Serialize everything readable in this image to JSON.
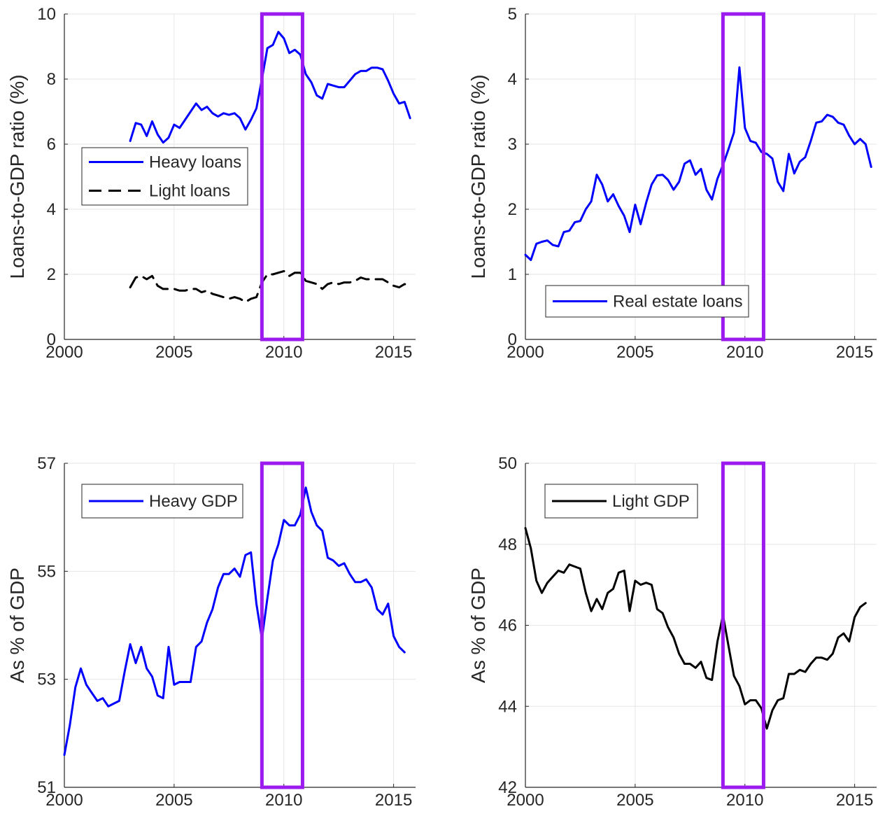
{
  "highlight_color": "#9b1bef",
  "chart_data": [
    {
      "type": "line",
      "ylabel": "Loans-to-GDP ratio (%)",
      "xlim": [
        2000,
        2016
      ],
      "ylim": [
        0,
        10
      ],
      "xticks": [
        2000,
        2005,
        2010,
        2015
      ],
      "yticks": [
        0,
        2,
        4,
        6,
        8,
        10
      ],
      "grid": true,
      "legend_position": "middle-left",
      "highlight_range": [
        2009,
        2010.85
      ],
      "series": [
        {
          "name": "Heavy loans",
          "color": "#0000ff",
          "dash": "solid",
          "x": [
            2003,
            2003.25,
            2003.5,
            2003.75,
            2004,
            2004.25,
            2004.5,
            2004.75,
            2005,
            2005.25,
            2005.5,
            2005.75,
            2006,
            2006.25,
            2006.5,
            2006.75,
            2007,
            2007.25,
            2007.5,
            2007.75,
            2008,
            2008.25,
            2008.5,
            2008.75,
            2009,
            2009.25,
            2009.5,
            2009.75,
            2010,
            2010.25,
            2010.5,
            2010.75,
            2011,
            2011.25,
            2011.5,
            2011.75,
            2012,
            2012.25,
            2012.5,
            2012.75,
            2013,
            2013.25,
            2013.5,
            2013.75,
            2014,
            2014.25,
            2014.5,
            2014.75,
            2015,
            2015.25,
            2015.5,
            2015.75
          ],
          "y": [
            6.1,
            6.65,
            6.6,
            6.25,
            6.7,
            6.3,
            6.05,
            6.2,
            6.6,
            6.5,
            6.75,
            7.0,
            7.25,
            7.05,
            7.15,
            6.95,
            6.85,
            6.95,
            6.9,
            6.95,
            6.8,
            6.45,
            6.75,
            7.1,
            8.0,
            8.95,
            9.05,
            9.45,
            9.25,
            8.8,
            8.9,
            8.75,
            8.15,
            7.9,
            7.5,
            7.4,
            7.85,
            7.8,
            7.75,
            7.75,
            7.95,
            8.15,
            8.25,
            8.25,
            8.35,
            8.35,
            8.3,
            7.95,
            7.55,
            7.25,
            7.3,
            6.8
          ]
        },
        {
          "name": "Light loans",
          "color": "#000000",
          "dash": "dashed",
          "x": [
            2003,
            2003.25,
            2003.5,
            2003.75,
            2004,
            2004.25,
            2004.5,
            2004.75,
            2005,
            2005.25,
            2005.5,
            2005.75,
            2006,
            2006.25,
            2006.5,
            2006.75,
            2007,
            2007.25,
            2007.5,
            2007.75,
            2008,
            2008.25,
            2008.5,
            2008.75,
            2009,
            2009.25,
            2009.5,
            2009.75,
            2010,
            2010.25,
            2010.5,
            2010.75,
            2011,
            2011.25,
            2011.5,
            2011.75,
            2012,
            2012.25,
            2012.5,
            2012.75,
            2013,
            2013.25,
            2013.5,
            2013.75,
            2014,
            2014.25,
            2014.5,
            2014.75,
            2015,
            2015.25,
            2015.5,
            2015.75
          ],
          "y": [
            1.6,
            1.9,
            1.95,
            1.85,
            1.95,
            1.65,
            1.55,
            1.55,
            1.55,
            1.5,
            1.5,
            1.55,
            1.55,
            1.45,
            1.5,
            1.4,
            1.35,
            1.3,
            1.25,
            1.3,
            1.25,
            1.15,
            1.25,
            1.3,
            1.75,
            2.0,
            2.0,
            2.05,
            2.1,
            1.95,
            2.05,
            2.05,
            1.8,
            1.75,
            1.7,
            1.55,
            1.7,
            1.75,
            1.7,
            1.75,
            1.75,
            1.8,
            1.9,
            1.85,
            1.85,
            1.85,
            1.85,
            1.75,
            1.65,
            1.6,
            1.7,
            1.65
          ]
        }
      ]
    },
    {
      "type": "line",
      "ylabel": "Loans-to-GDP ratio (%)",
      "xlim": [
        2000,
        2016
      ],
      "ylim": [
        0,
        5
      ],
      "xticks": [
        2000,
        2005,
        2010,
        2015
      ],
      "yticks": [
        0,
        1,
        2,
        3,
        4,
        5
      ],
      "grid": true,
      "legend_position": "bottom-center",
      "highlight_range": [
        2009,
        2010.85
      ],
      "series": [
        {
          "name": "Real estate loans",
          "color": "#0000ff",
          "dash": "solid",
          "x": [
            2000,
            2000.25,
            2000.5,
            2000.75,
            2001,
            2001.25,
            2001.5,
            2001.75,
            2002,
            2002.25,
            2002.5,
            2002.75,
            2003,
            2003.25,
            2003.5,
            2003.75,
            2004,
            2004.25,
            2004.5,
            2004.75,
            2005,
            2005.25,
            2005.5,
            2005.75,
            2006,
            2006.25,
            2006.5,
            2006.75,
            2007,
            2007.25,
            2007.5,
            2007.75,
            2008,
            2008.25,
            2008.5,
            2008.75,
            2009,
            2009.25,
            2009.5,
            2009.75,
            2010,
            2010.25,
            2010.5,
            2010.75,
            2011,
            2011.25,
            2011.5,
            2011.75,
            2012,
            2012.25,
            2012.5,
            2012.75,
            2013,
            2013.25,
            2013.5,
            2013.75,
            2014,
            2014.25,
            2014.5,
            2014.75,
            2015,
            2015.25,
            2015.5,
            2015.75
          ],
          "y": [
            1.3,
            1.22,
            1.47,
            1.5,
            1.52,
            1.45,
            1.43,
            1.65,
            1.67,
            1.8,
            1.82,
            2.0,
            2.12,
            2.53,
            2.38,
            2.12,
            2.23,
            2.05,
            1.9,
            1.65,
            2.07,
            1.77,
            2.1,
            2.38,
            2.52,
            2.53,
            2.45,
            2.3,
            2.42,
            2.7,
            2.75,
            2.53,
            2.62,
            2.3,
            2.15,
            2.47,
            2.68,
            2.92,
            3.18,
            4.18,
            3.25,
            3.05,
            3.02,
            2.88,
            2.85,
            2.78,
            2.42,
            2.28,
            2.85,
            2.55,
            2.73,
            2.8,
            3.05,
            3.33,
            3.35,
            3.45,
            3.42,
            3.33,
            3.3,
            3.13,
            3.0,
            3.08,
            3.0,
            2.65
          ]
        }
      ]
    },
    {
      "type": "line",
      "ylabel": "As % of GDP",
      "xlim": [
        2000,
        2016
      ],
      "ylim": [
        51,
        57
      ],
      "xticks": [
        2000,
        2005,
        2010,
        2015
      ],
      "yticks": [
        51,
        53,
        55,
        57
      ],
      "grid": true,
      "legend_position": "top-left",
      "highlight_range": [
        2009,
        2010.85
      ],
      "series": [
        {
          "name": "Heavy GDP",
          "color": "#0000ff",
          "dash": "solid",
          "x": [
            2000,
            2000.25,
            2000.5,
            2000.75,
            2001,
            2001.25,
            2001.5,
            2001.75,
            2002,
            2002.25,
            2002.5,
            2002.75,
            2003,
            2003.25,
            2003.5,
            2003.75,
            2004,
            2004.25,
            2004.5,
            2004.75,
            2005,
            2005.25,
            2005.5,
            2005.75,
            2006,
            2006.25,
            2006.5,
            2006.75,
            2007,
            2007.25,
            2007.5,
            2007.75,
            2008,
            2008.25,
            2008.5,
            2008.75,
            2009,
            2009.25,
            2009.5,
            2009.75,
            2010,
            2010.25,
            2010.5,
            2010.75,
            2011,
            2011.25,
            2011.5,
            2011.75,
            2012,
            2012.25,
            2012.5,
            2012.75,
            2013,
            2013.25,
            2013.5,
            2013.75,
            2014,
            2014.25,
            2014.5,
            2014.75,
            2015,
            2015.25,
            2015.5
          ],
          "y": [
            51.6,
            52.15,
            52.85,
            53.2,
            52.9,
            52.75,
            52.6,
            52.65,
            52.5,
            52.55,
            52.6,
            53.15,
            53.65,
            53.3,
            53.6,
            53.2,
            53.05,
            52.7,
            52.65,
            53.6,
            52.9,
            52.95,
            52.95,
            52.95,
            53.6,
            53.7,
            54.05,
            54.3,
            54.7,
            54.95,
            54.95,
            55.05,
            54.9,
            55.3,
            55.35,
            54.4,
            53.75,
            54.5,
            55.2,
            55.5,
            55.95,
            55.85,
            55.85,
            56.05,
            56.55,
            56.1,
            55.85,
            55.75,
            55.25,
            55.2,
            55.1,
            55.15,
            54.95,
            54.8,
            54.8,
            54.85,
            54.7,
            54.3,
            54.2,
            54.4,
            53.8,
            53.6,
            53.5
          ]
        }
      ]
    },
    {
      "type": "line",
      "ylabel": "As % of GDP",
      "xlim": [
        2000,
        2016
      ],
      "ylim": [
        42,
        50
      ],
      "xticks": [
        2000,
        2005,
        2010,
        2015
      ],
      "yticks": [
        42,
        44,
        46,
        48,
        50
      ],
      "grid": true,
      "legend_position": "top-left",
      "highlight_range": [
        2009,
        2010.85
      ],
      "series": [
        {
          "name": "Light GDP",
          "color": "#000000",
          "dash": "solid",
          "x": [
            2000,
            2000.25,
            2000.5,
            2000.75,
            2001,
            2001.25,
            2001.5,
            2001.75,
            2002,
            2002.25,
            2002.5,
            2002.75,
            2003,
            2003.25,
            2003.5,
            2003.75,
            2004,
            2004.25,
            2004.5,
            2004.75,
            2005,
            2005.25,
            2005.5,
            2005.75,
            2006,
            2006.25,
            2006.5,
            2006.75,
            2007,
            2007.25,
            2007.5,
            2007.75,
            2008,
            2008.25,
            2008.5,
            2008.75,
            2009,
            2009.25,
            2009.5,
            2009.75,
            2010,
            2010.25,
            2010.5,
            2010.75,
            2011,
            2011.25,
            2011.5,
            2011.75,
            2012,
            2012.25,
            2012.5,
            2012.75,
            2013,
            2013.25,
            2013.5,
            2013.75,
            2014,
            2014.25,
            2014.5,
            2014.75,
            2015,
            2015.25,
            2015.5
          ],
          "y": [
            48.4,
            47.9,
            47.1,
            46.8,
            47.05,
            47.2,
            47.35,
            47.3,
            47.5,
            47.45,
            47.4,
            46.8,
            46.35,
            46.65,
            46.4,
            46.8,
            46.9,
            47.3,
            47.35,
            46.35,
            47.1,
            47.0,
            47.05,
            47.0,
            46.4,
            46.3,
            45.95,
            45.7,
            45.3,
            45.05,
            45.05,
            44.95,
            45.1,
            44.7,
            44.65,
            45.6,
            46.25,
            45.5,
            44.75,
            44.5,
            44.05,
            44.15,
            44.15,
            43.95,
            43.45,
            43.9,
            44.15,
            44.2,
            44.8,
            44.8,
            44.9,
            44.85,
            45.05,
            45.2,
            45.2,
            45.15,
            45.3,
            45.7,
            45.8,
            45.6,
            46.2,
            46.45,
            46.55
          ]
        }
      ]
    }
  ]
}
